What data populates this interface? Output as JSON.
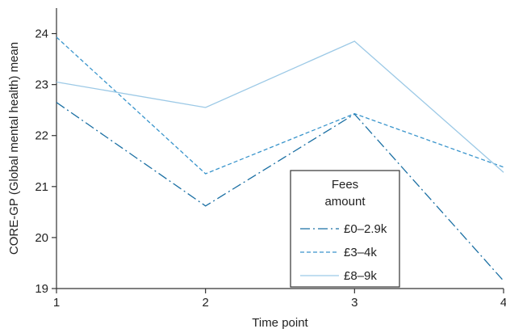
{
  "chart_data": {
    "type": "line",
    "xlabel": "Time point",
    "ylabel": "CORE-GP (Global mental health) mean",
    "x": [
      1,
      2,
      3,
      4
    ],
    "x_ticks": [
      "1",
      "2",
      "3",
      "4"
    ],
    "y_ticks": [
      "19",
      "20",
      "21",
      "22",
      "23",
      "24"
    ],
    "xlim": [
      1,
      4
    ],
    "ylim": [
      19,
      24.5
    ],
    "grid": false,
    "legend": {
      "title": "Fees amount",
      "title_lines": [
        "Fees",
        "amount"
      ],
      "placement": "lower-center-right"
    },
    "series": [
      {
        "name": "£0–2.9k",
        "values": [
          22.65,
          20.62,
          22.42,
          19.15
        ],
        "style": "dashdot",
        "color": "#1a6fa3"
      },
      {
        "name": "£3–4k",
        "values": [
          23.93,
          21.25,
          22.43,
          21.38
        ],
        "style": "dashed",
        "color": "#3a95cc"
      },
      {
        "name": "£8–9k",
        "values": [
          23.05,
          22.55,
          23.85,
          21.28
        ],
        "style": "solid",
        "color": "#9cc9e6"
      }
    ]
  }
}
